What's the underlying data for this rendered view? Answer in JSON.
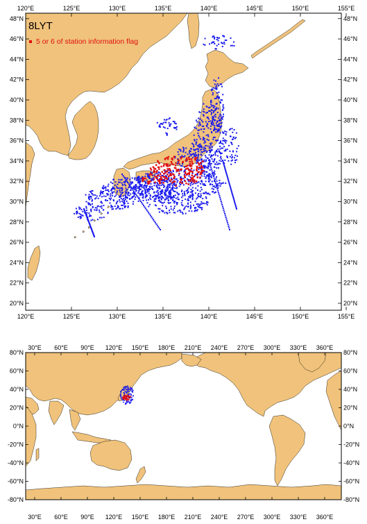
{
  "top_map": {
    "title": "8LYT",
    "legend": {
      "label": "5 or 6 of station information flag",
      "color": "#e01010"
    },
    "x_ticks": [
      "120°E",
      "125°E",
      "130°E",
      "135°E",
      "140°E",
      "145°E",
      "150°E",
      "155°E"
    ],
    "y_ticks": [
      "20°N",
      "22°N",
      "24°N",
      "26°N",
      "28°N",
      "30°N",
      "32°N",
      "34°N",
      "36°N",
      "38°N",
      "40°N",
      "42°N",
      "44°N",
      "46°N",
      "48°N"
    ]
  },
  "bottom_map": {
    "x_ticks": [
      "30°E",
      "60°E",
      "90°E",
      "120°E",
      "150°E",
      "180°E",
      "210°E",
      "240°E",
      "270°E",
      "300°E",
      "330°E",
      "360°E"
    ],
    "y_ticks_left": [
      "80°N",
      "60°N",
      "40°N",
      "20°N",
      "0°N",
      "-20°N",
      "-40°N",
      "-60°N",
      "-80°N"
    ],
    "y_ticks_right": [
      "80°N",
      "60°N",
      "40°N",
      "20°N",
      "0°N",
      "-20°N",
      "-40°N",
      "-60°N",
      "-80°N"
    ]
  },
  "colors": {
    "land": "#f0c27b",
    "ocean": "#ffffff",
    "station": "#1a1aee",
    "flagged_station": "#e01010"
  }
}
